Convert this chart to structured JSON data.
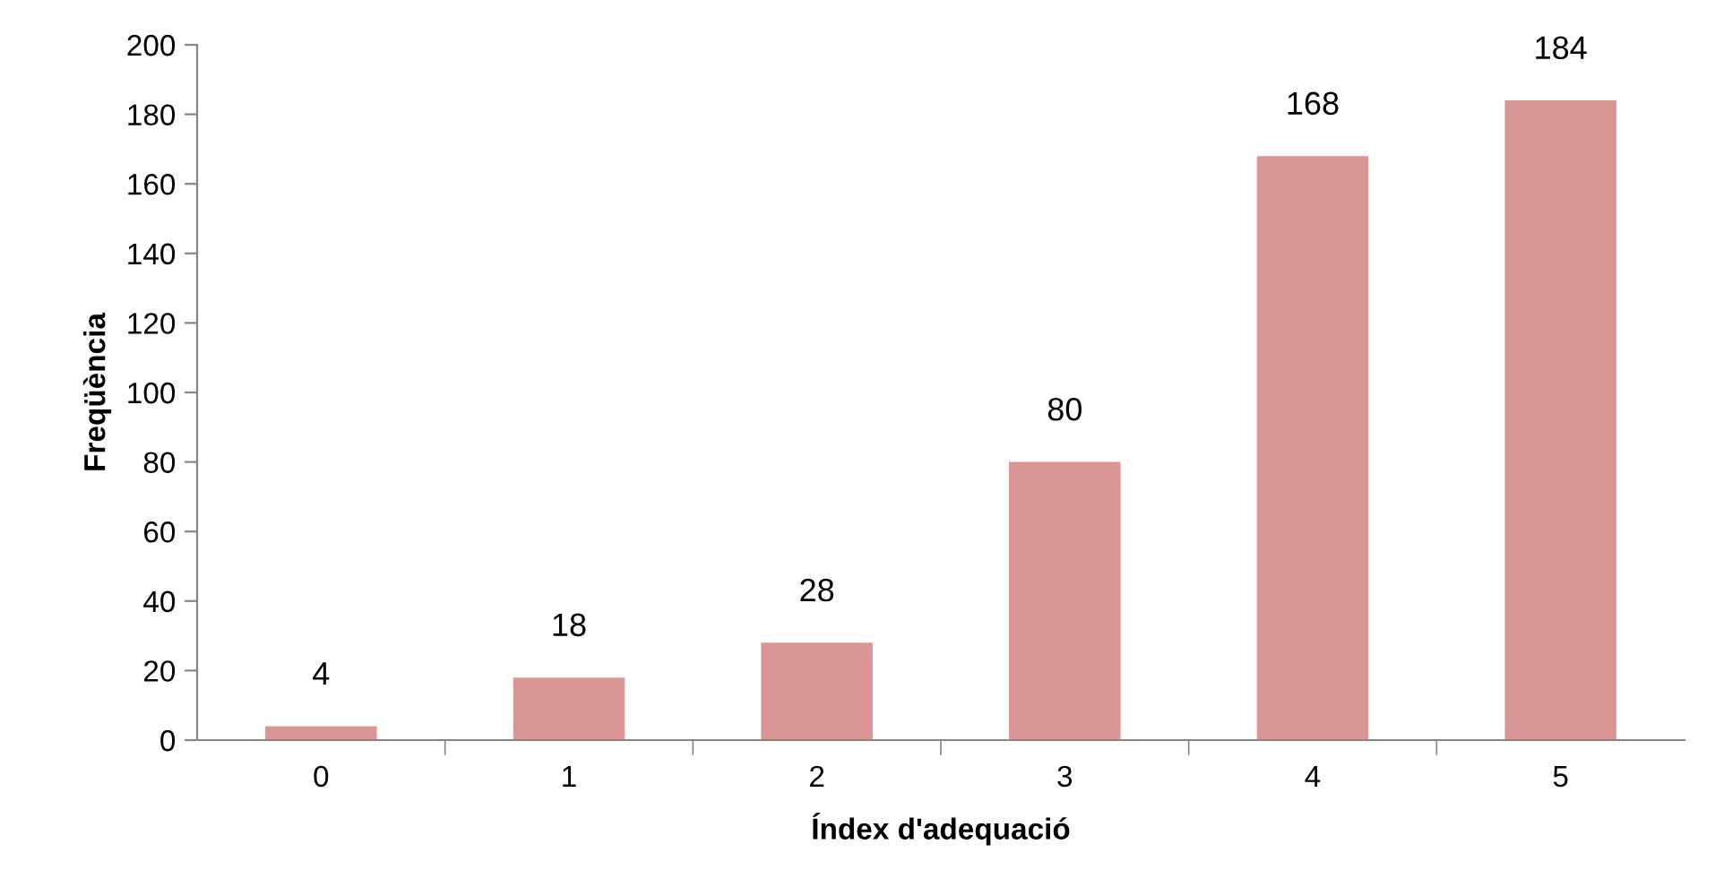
{
  "chart_data": {
    "type": "bar",
    "xlabel": "Índex d'adequació",
    "ylabel": "Freqüència",
    "categories": [
      "0",
      "1",
      "2",
      "3",
      "4",
      "5"
    ],
    "values": [
      4,
      18,
      28,
      80,
      168,
      184
    ],
    "color": "#d99694",
    "ylim": [
      0,
      200
    ],
    "yticks": [
      0,
      20,
      40,
      60,
      80,
      100,
      120,
      140,
      160,
      180,
      200
    ],
    "data_labels": true,
    "grid": false
  }
}
